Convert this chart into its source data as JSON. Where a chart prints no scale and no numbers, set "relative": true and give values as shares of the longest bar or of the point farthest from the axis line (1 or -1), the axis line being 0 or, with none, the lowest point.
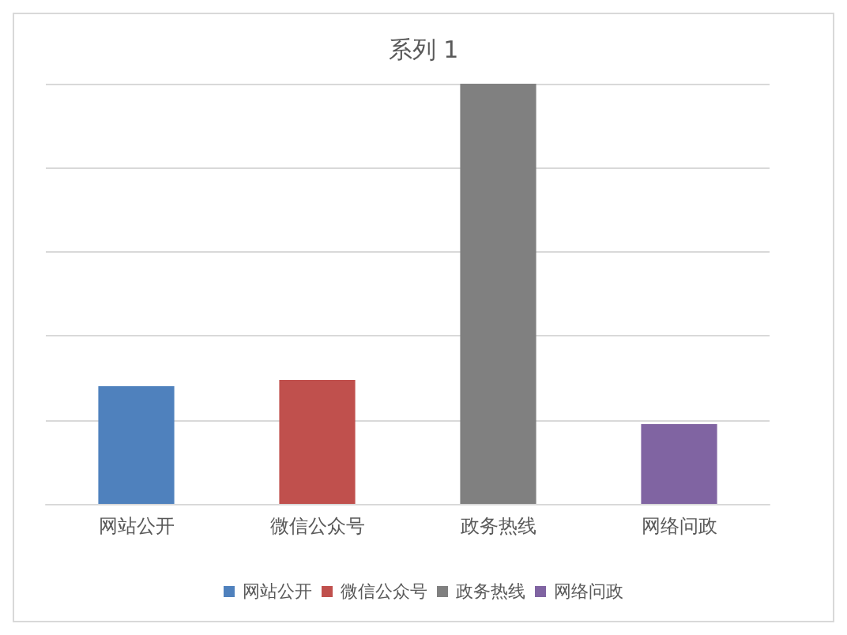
{
  "chart_data": {
    "type": "bar",
    "title": "系列 1",
    "categories": [
      "网站公开",
      "微信公众号",
      "政务热线",
      "网络问政"
    ],
    "stacked": true,
    "series": [
      {
        "name": "网站公开",
        "color": "#4f81bd",
        "values": [
          0.28,
          null,
          null,
          null
        ]
      },
      {
        "name": "微信公众号",
        "color": "#c0504d",
        "values": [
          null,
          0.295,
          null,
          null
        ]
      },
      {
        "name": "政务热线",
        "color": "#808080",
        "values": [
          null,
          null,
          1,
          null
        ]
      },
      {
        "name": "网络问政",
        "color": "#8064a2",
        "values": [
          null,
          null,
          null,
          0.19
        ]
      }
    ],
    "relative": true,
    "grid": "y",
    "legend": "bottom"
  }
}
